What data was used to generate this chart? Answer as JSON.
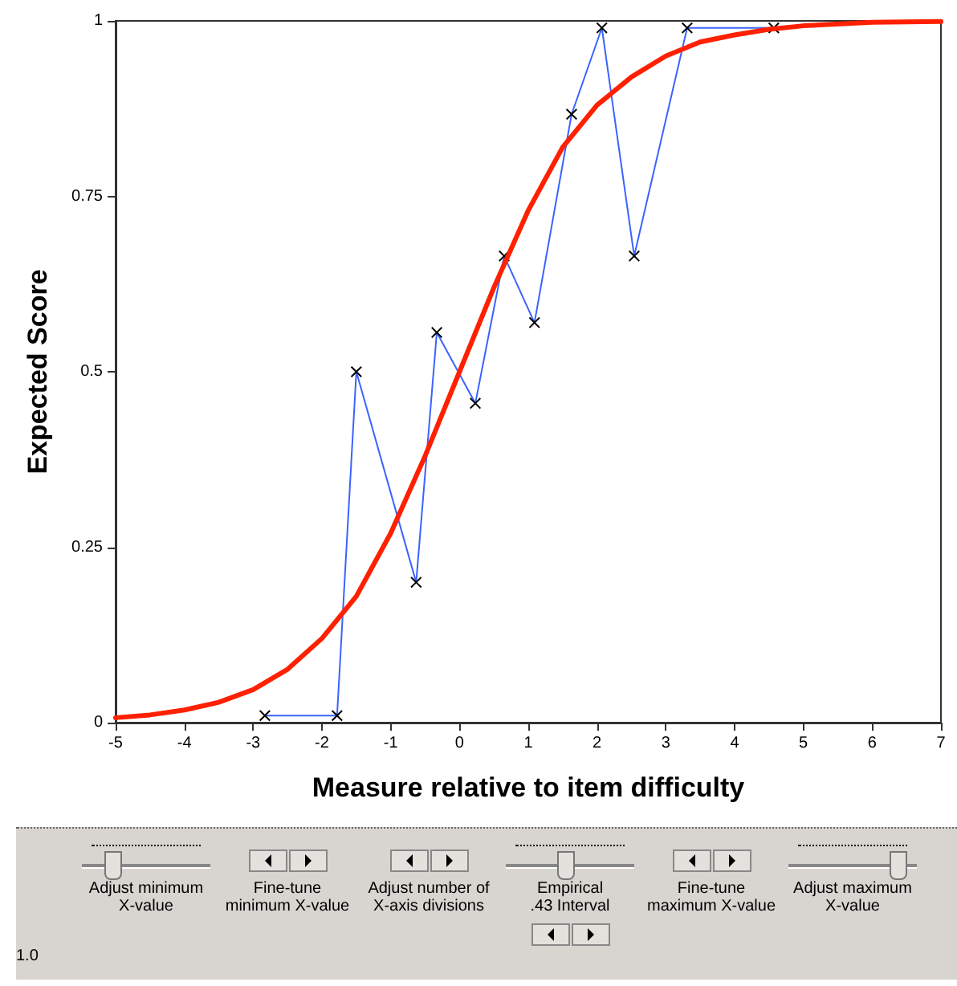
{
  "chart_data": {
    "type": "line",
    "xlabel": "Measure relative to item difficulty",
    "ylabel": "Expected Score",
    "xlim": [
      -5,
      7
    ],
    "xticks": [
      -5,
      -4,
      -3,
      -2,
      -1,
      0,
      1,
      2,
      3,
      4,
      5,
      6,
      7
    ],
    "ylim": [
      0,
      1
    ],
    "yticks": [
      0,
      0.25,
      0.5,
      0.75,
      1
    ],
    "grid": false,
    "series": [
      {
        "color": "#ff2000",
        "line_style": "solid",
        "marker": "none",
        "x": [
          -5,
          -4.5,
          -4,
          -3.5,
          -3,
          -2.5,
          -2,
          -1.5,
          -1,
          -0.5,
          0,
          0.5,
          1,
          1.5,
          2,
          2.5,
          3,
          3.5,
          4,
          4.5,
          5,
          6,
          7
        ],
        "values": [
          0.007,
          0.011,
          0.018,
          0.029,
          0.047,
          0.076,
          0.12,
          0.18,
          0.27,
          0.38,
          0.5,
          0.62,
          0.73,
          0.82,
          0.88,
          0.92,
          0.95,
          0.97,
          0.98,
          0.988,
          0.993,
          0.998,
          0.999
        ]
      },
      {
        "color": "#3a63ff",
        "line_style": "solid",
        "marker": "cross",
        "x": [
          -2.83,
          -1.78,
          -1.5,
          -0.63,
          -0.33,
          0.23,
          0.65,
          1.09,
          1.63,
          2.07,
          2.54,
          3.31,
          4.57
        ],
        "values": [
          0.01,
          0.01,
          0.5,
          0.2,
          0.556,
          0.455,
          0.665,
          0.57,
          0.867,
          0.99,
          0.665,
          0.99,
          0.99
        ]
      }
    ],
    "annotations": [
      "Adjust minimum\nX-value",
      "Fine-tune\nminimum X-value",
      "Adjust number of\nX-axis divisions",
      "Empirical\n.43 Interval",
      "Fine-tune\nmaximum X-value",
      "Adjust maximum\nX-value",
      "1.0"
    ]
  }
}
